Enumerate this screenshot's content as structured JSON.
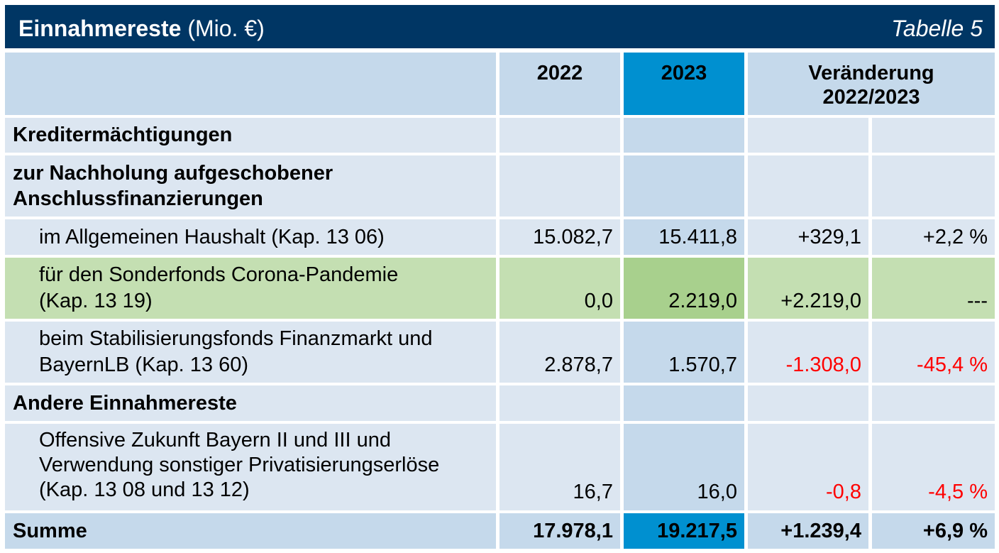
{
  "title": {
    "main": "Einnahmereste",
    "unit": "(Mio. €)",
    "table_label": "Tabelle 5"
  },
  "header": {
    "col_2022": "2022",
    "col_2023": "2023",
    "col_change_line1": "Veränderung",
    "col_change_line2": "2022/2023"
  },
  "sections": {
    "kredit": "Kreditermächtigungen",
    "nachholung_line1": "zur Nachholung aufgeschobener",
    "nachholung_line2": "Anschlussfinanzierungen",
    "andere": "Andere Einnahmereste"
  },
  "rows": [
    {
      "label_line1": "im Allgemeinen Haushalt (Kap. 13 06)",
      "v2022": "15.082,7",
      "v2023": "15.411,8",
      "change_abs": "+329,1",
      "change_pct": "+2,2 %"
    },
    {
      "label_line1": "für den Sonderfonds Corona-Pandemie",
      "label_line2": "(Kap. 13 19)",
      "v2022": "0,0",
      "v2023": "2.219,0",
      "change_abs": "+2.219,0",
      "change_pct": "---"
    },
    {
      "label_line1": "beim Stabilisierungsfonds Finanzmarkt und",
      "label_line2": "BayernLB (Kap. 13 60)",
      "v2022": "2.878,7",
      "v2023": "1.570,7",
      "change_abs": "-1.308,0",
      "change_pct": "-45,4 %"
    },
    {
      "label_line1": "Offensive Zukunft Bayern II und III und",
      "label_line2": "Verwendung sonstiger Privatisierungserlöse",
      "label_line3": "(Kap. 13 08 und 13 12)",
      "v2022": "16,7",
      "v2023": "16,0",
      "change_abs": "-0,8",
      "change_pct": "-4,5 %"
    }
  ],
  "total": {
    "label": "Summe",
    "v2022": "17.978,1",
    "v2023": "19.217,5",
    "change_abs": "+1.239,4",
    "change_pct": "+6,9 %"
  },
  "colors": {
    "title_bg": "#003664",
    "highlight_2023": "#0090d0",
    "negative": "#ff0000",
    "corona_row": "#c4dfb2"
  }
}
